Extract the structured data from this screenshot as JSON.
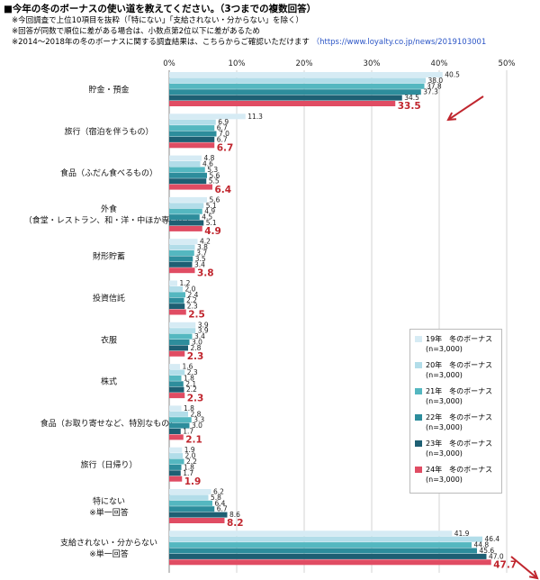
{
  "header": {
    "title": "■今年の冬のボーナスの使い道を教えてください。（3つまでの複数回答）",
    "notes": [
      "※今回調査で上位10項目を抜粋（「特にない」「支給されない・分からない」を除く）",
      "※回答が同数で順位に差がある場合は、小数点第2位以下に差があるため"
    ],
    "note3_text": "※2014～2018年の冬のボーナスに関する調査結果は、こちらからご確認いただけます",
    "note3_link": "（https://www.loyalty.co.jp/news/2019103001"
  },
  "colors": {
    "series": [
      "#d6ebf4",
      "#b2dde9",
      "#54b7c0",
      "#2d8d9c",
      "#1e5f73",
      "#e04c63"
    ],
    "highlight_text": "#c0262e",
    "arrow": "#c0262e",
    "grid": "#c8c8c8"
  },
  "chart_data": {
    "type": "bar",
    "orientation": "horizontal",
    "xlim": [
      0,
      50
    ],
    "x_ticks": [
      "0%",
      "10%",
      "20%",
      "30%",
      "40%",
      "50%"
    ],
    "grid": true,
    "legend_position": "bottom-right",
    "categories": [
      [
        "貯金・預金"
      ],
      [
        "旅行（宿泊を伴うもの）"
      ],
      [
        "食品（ふだん食べるもの）"
      ],
      [
        "外食",
        "（食堂・レストラン、和・洋・中ほか専門店）"
      ],
      [
        "財形貯蓄"
      ],
      [
        "投資信託"
      ],
      [
        "衣服"
      ],
      [
        "株式"
      ],
      [
        "食品（お取り寄せなど、特別なもの）"
      ],
      [
        "旅行（日帰り）"
      ],
      [
        "特にない",
        "※単一回答"
      ],
      [
        "支給されない・分からない",
        "※単一回答"
      ]
    ],
    "series": [
      {
        "name": "19年　冬のボーナス",
        "n": "(n=3,000)",
        "values": [
          40.5,
          11.3,
          4.8,
          5.6,
          4.2,
          1.2,
          3.9,
          1.6,
          1.8,
          1.9,
          6.2,
          41.9
        ]
      },
      {
        "name": "20年　冬のボーナス",
        "n": "(n=3,000)",
        "values": [
          38.0,
          6.9,
          4.6,
          5.1,
          3.8,
          2.0,
          3.9,
          2.3,
          2.8,
          2.0,
          5.8,
          46.4
        ]
      },
      {
        "name": "21年　冬のボーナス",
        "n": "(n=3,000)",
        "values": [
          37.8,
          6.7,
          5.3,
          4.9,
          3.7,
          2.4,
          3.4,
          1.8,
          3.3,
          2.2,
          6.4,
          44.8
        ]
      },
      {
        "name": "22年　冬のボーナス",
        "n": "(n=3,000)",
        "values": [
          37.3,
          7.0,
          5.6,
          4.5,
          3.5,
          2.2,
          3.0,
          2.1,
          3.0,
          1.8,
          6.7,
          45.6
        ]
      },
      {
        "name": "23年　冬のボーナス",
        "n": "(n=3,000)",
        "values": [
          34.5,
          6.7,
          5.5,
          5.1,
          3.4,
          2.3,
          2.8,
          2.2,
          1.7,
          1.7,
          8.6,
          47.0
        ]
      },
      {
        "name": "24年　冬のボーナス",
        "n": "(n=3,000)",
        "values": [
          33.5,
          6.7,
          6.4,
          4.9,
          3.8,
          2.5,
          2.3,
          2.3,
          2.1,
          1.9,
          8.2,
          47.7
        ]
      }
    ],
    "highlight_series": 5,
    "annotations": [
      {
        "type": "arrow",
        "category": "貯金・預金",
        "direction": "down-left"
      },
      {
        "type": "arrow",
        "category": "支給されない・分からない",
        "direction": "down-right"
      }
    ]
  }
}
